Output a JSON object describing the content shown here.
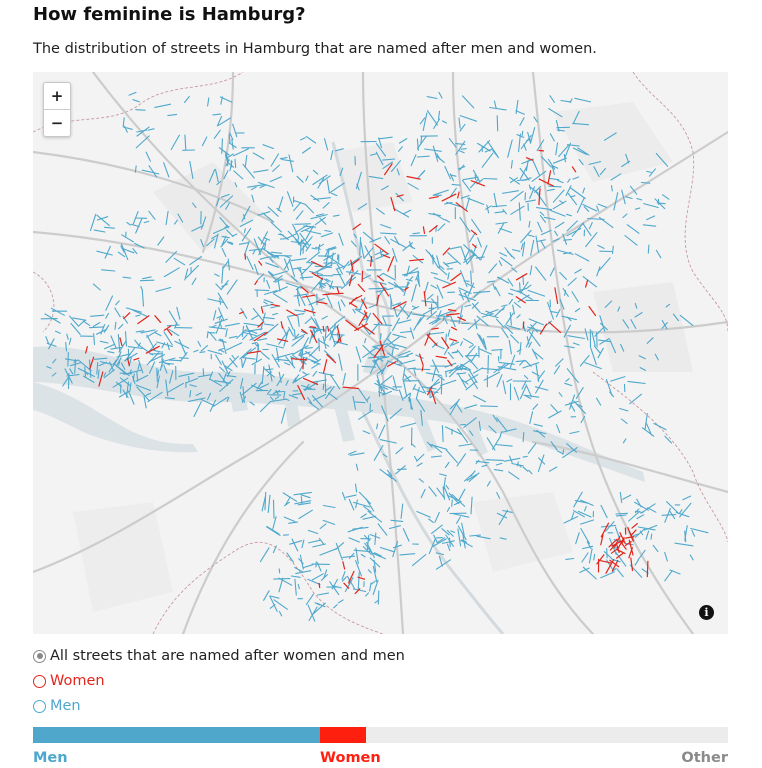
{
  "header": {
    "title": "How feminine is Hamburg?",
    "subtitle": "The distribution of streets in Hamburg that are named after men and women."
  },
  "map": {
    "zoom_in_label": "+",
    "zoom_out_label": "−",
    "info_label": "i"
  },
  "legend": {
    "options": [
      {
        "label": "All streets that are named after women and men",
        "selected": true,
        "color": "#888888"
      },
      {
        "label": "Women",
        "selected": false,
        "color": "#e3251b"
      },
      {
        "label": "Men",
        "selected": false,
        "color": "#4fa8cc"
      }
    ]
  },
  "share_bar": {
    "men": {
      "label": "Men",
      "fraction": 0.413,
      "color": "#4fa8cc"
    },
    "women": {
      "label": "Women",
      "fraction": 0.066,
      "color": "#ff1f0f"
    },
    "other": {
      "label": "Other",
      "fraction": 0.521,
      "color": "#ececec"
    }
  },
  "colors": {
    "men": "#4fa8cc",
    "women": "#e3251b",
    "water": "#dce3e6",
    "road": "#cfcfcf",
    "background": "#f4f4f4"
  }
}
